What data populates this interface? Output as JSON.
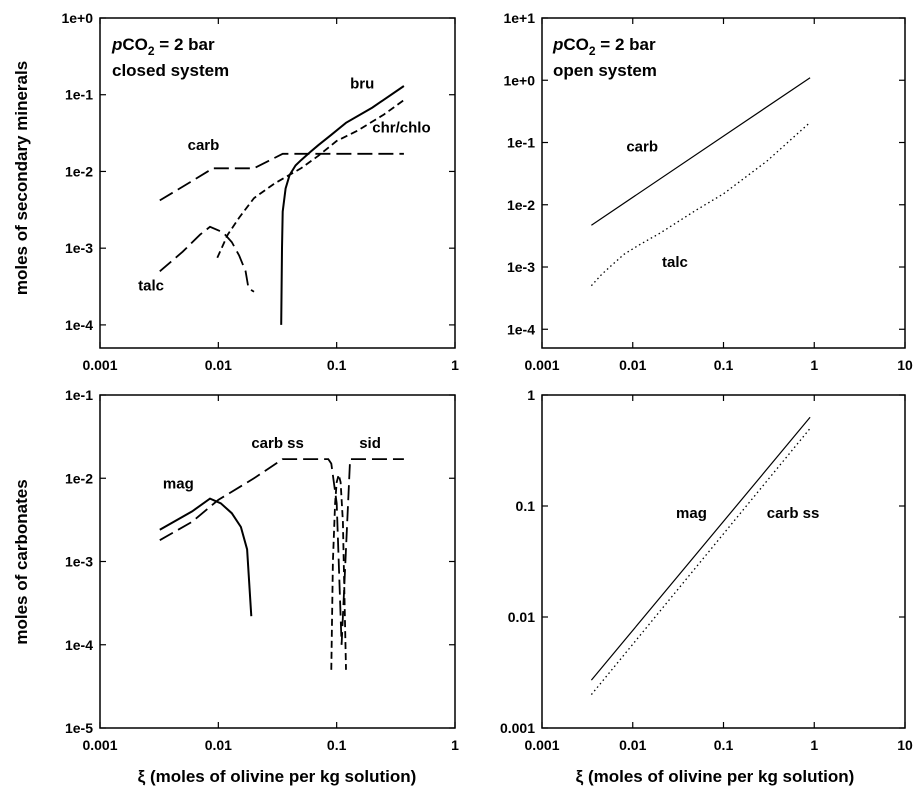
{
  "figure": {
    "ylabels": [
      "moles of secondary minerals",
      "moles of carbonates"
    ],
    "xlabel": "ξ (moles of olivine per kg solution)"
  },
  "chart_data": [
    {
      "type": "line",
      "title_lines": [
        "pCO2 = 2 bar",
        "closed system"
      ],
      "xscale": "log",
      "yscale": "log",
      "xlim": [
        0.001,
        1
      ],
      "ylim": [
        5e-05,
        1
      ],
      "xticks": [
        0.001,
        0.01,
        0.1,
        1
      ],
      "xtick_labels": [
        "0.001",
        "0.01",
        "0.1",
        "1"
      ],
      "yticks": [
        0.0001,
        0.001,
        0.01,
        0.1,
        1
      ],
      "ytick_labels": [
        "1e-4",
        "1e-3",
        "1e-2",
        "1e-1",
        "1e+0"
      ],
      "series": [
        {
          "name": "bru",
          "style": "solid",
          "x": [
            0.034,
            0.0345,
            0.035,
            0.037,
            0.04,
            0.045,
            0.05,
            0.06,
            0.07,
            0.09,
            0.12,
            0.2,
            0.37
          ],
          "y": [
            0.0001,
            0.001,
            0.003,
            0.006,
            0.009,
            0.012,
            0.014,
            0.018,
            0.022,
            0.03,
            0.043,
            0.068,
            0.13
          ]
        },
        {
          "name": "chr/chlo",
          "style": "dashed",
          "x": [
            0.0098,
            0.012,
            0.015,
            0.02,
            0.03,
            0.05,
            0.07,
            0.1,
            0.15,
            0.25,
            0.37
          ],
          "y": [
            0.00075,
            0.0015,
            0.0025,
            0.0045,
            0.007,
            0.011,
            0.016,
            0.025,
            0.034,
            0.055,
            0.085
          ]
        },
        {
          "name": "carb",
          "style": "longdash",
          "x": [
            0.0032,
            0.006,
            0.009,
            0.012,
            0.02,
            0.035,
            0.06,
            0.1,
            0.2,
            0.37
          ],
          "y": [
            0.0042,
            0.0075,
            0.011,
            0.011,
            0.011,
            0.017,
            0.017,
            0.017,
            0.017,
            0.017
          ]
        },
        {
          "name": "talc",
          "style": "longdash",
          "x": [
            0.0032,
            0.005,
            0.007,
            0.0085,
            0.011,
            0.013,
            0.015,
            0.017,
            0.018,
            0.02
          ],
          "y": [
            0.0005,
            0.0009,
            0.0015,
            0.0019,
            0.0016,
            0.0012,
            0.0008,
            0.0005,
            0.0003,
            0.00027
          ]
        }
      ],
      "annotations": [
        {
          "text": "bru",
          "x": 0.13,
          "y": 0.12
        },
        {
          "text": "chr/chlo",
          "x": 0.2,
          "y": 0.032
        },
        {
          "text": "carb",
          "x": 0.0055,
          "y": 0.019
        },
        {
          "text": "talc",
          "x": 0.0021,
          "y": 0.00028
        }
      ]
    },
    {
      "type": "line",
      "title_lines": [
        "pCO2 = 2 bar",
        "open system"
      ],
      "xscale": "log",
      "yscale": "log",
      "xlim": [
        0.001,
        10
      ],
      "ylim": [
        5e-05,
        10
      ],
      "xticks": [
        0.001,
        0.01,
        0.1,
        1,
        10
      ],
      "xtick_labels": [
        "0.001",
        "0.01",
        "0.1",
        "1",
        "10"
      ],
      "yticks": [
        0.0001,
        0.001,
        0.01,
        0.1,
        1,
        10
      ],
      "ytick_labels": [
        "1e-4",
        "1e-3",
        "1e-2",
        "1e-1",
        "1e+0",
        "1e+1"
      ],
      "series": [
        {
          "name": "carb",
          "style": "solid",
          "x": [
            0.0035,
            0.9
          ],
          "y": [
            0.0047,
            1.1
          ]
        },
        {
          "name": "talc",
          "style": "dotted",
          "x": [
            0.0035,
            0.0045,
            0.006,
            0.008,
            0.012,
            0.02,
            0.05,
            0.1,
            0.3,
            0.9
          ],
          "y": [
            0.0005,
            0.00075,
            0.0011,
            0.0016,
            0.0023,
            0.0035,
            0.0082,
            0.015,
            0.05,
            0.21
          ]
        }
      ],
      "annotations": [
        {
          "text": "carb",
          "x": 0.0085,
          "y": 0.072
        },
        {
          "text": "talc",
          "x": 0.021,
          "y": 0.001
        }
      ]
    },
    {
      "type": "line",
      "title_lines": [],
      "xscale": "log",
      "yscale": "log",
      "xlim": [
        0.001,
        1
      ],
      "ylim": [
        1e-05,
        0.1
      ],
      "xticks": [
        0.001,
        0.01,
        0.1,
        1
      ],
      "xtick_labels": [
        "0.001",
        "0.01",
        "0.1",
        "1"
      ],
      "yticks": [
        1e-05,
        0.0001,
        0.001,
        0.01,
        0.1
      ],
      "ytick_labels": [
        "1e-5",
        "1e-4",
        "1e-3",
        "1e-2",
        "1e-1"
      ],
      "series": [
        {
          "name": "mag",
          "style": "solid",
          "x": [
            0.0032,
            0.006,
            0.0085,
            0.0105,
            0.013,
            0.0155,
            0.0175,
            0.019
          ],
          "y": [
            0.0024,
            0.004,
            0.0057,
            0.005,
            0.0038,
            0.0026,
            0.0014,
            0.00022
          ]
        },
        {
          "name": "carb ss",
          "style": "longdash",
          "x": [
            0.0032,
            0.006,
            0.01,
            0.02,
            0.035,
            0.06,
            0.085,
            0.09,
            0.1,
            0.11,
            0.13,
            0.2,
            0.37
          ],
          "y": [
            0.0018,
            0.003,
            0.0055,
            0.01,
            0.017,
            0.017,
            0.017,
            0.015,
            0.005,
            0.0001,
            0.017,
            0.017,
            0.017
          ]
        },
        {
          "name": "sid",
          "style": "dashed",
          "x": [
            0.09,
            0.093,
            0.097,
            0.1,
            0.104,
            0.108,
            0.113,
            0.12
          ],
          "y": [
            5e-05,
            0.001,
            0.005,
            0.009,
            0.011,
            0.009,
            0.003,
            5e-05
          ]
        }
      ],
      "annotations": [
        {
          "text": "mag",
          "x": 0.0034,
          "y": 0.0075
        },
        {
          "text": "carb ss",
          "x": 0.019,
          "y": 0.023
        },
        {
          "text": "sid",
          "x": 0.155,
          "y": 0.023
        }
      ]
    },
    {
      "type": "line",
      "title_lines": [],
      "xscale": "log",
      "yscale": "log",
      "xlim": [
        0.001,
        10
      ],
      "ylim": [
        0.001,
        1
      ],
      "xticks": [
        0.001,
        0.01,
        0.1,
        1,
        10
      ],
      "xtick_labels": [
        "0.001",
        "0.01",
        "0.1",
        "1",
        "10"
      ],
      "yticks": [
        0.001,
        0.01,
        0.1,
        1
      ],
      "ytick_labels": [
        "0.001",
        "0.01",
        "0.1",
        "1"
      ],
      "series": [
        {
          "name": "mag",
          "style": "solid",
          "x": [
            0.0035,
            0.9
          ],
          "y": [
            0.0027,
            0.63
          ]
        },
        {
          "name": "carb ss",
          "style": "dotted",
          "x": [
            0.0035,
            0.9
          ],
          "y": [
            0.002,
            0.5
          ]
        }
      ],
      "annotations": [
        {
          "text": "mag",
          "x": 0.03,
          "y": 0.078
        },
        {
          "text": "carb ss",
          "x": 0.3,
          "y": 0.078
        }
      ]
    }
  ]
}
